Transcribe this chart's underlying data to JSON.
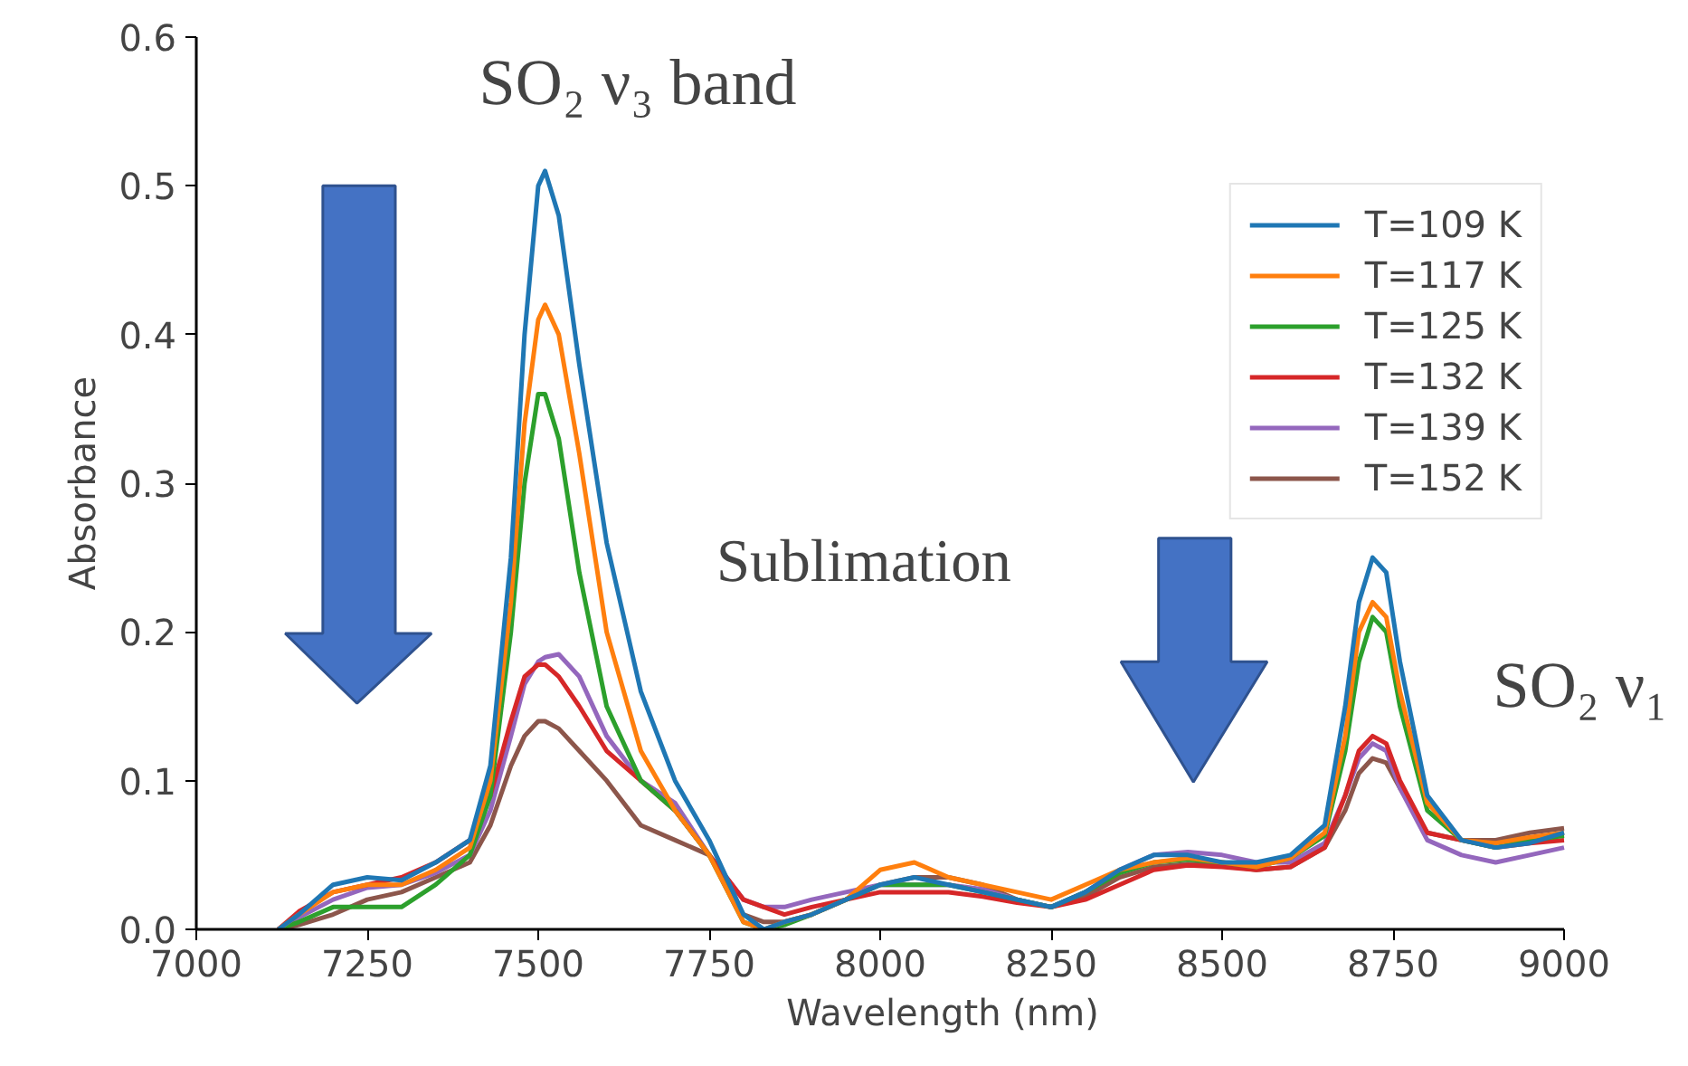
{
  "chart_data": {
    "type": "line",
    "xlabel": "Wavelength (nm)",
    "ylabel": "Absorbance",
    "x": [
      7120,
      7150,
      7200,
      7250,
      7300,
      7350,
      7400,
      7430,
      7460,
      7480,
      7500,
      7510,
      7530,
      7560,
      7600,
      7650,
      7700,
      7750,
      7800,
      7830,
      7860,
      7900,
      7950,
      8000,
      8050,
      8100,
      8150,
      8200,
      8250,
      8300,
      8350,
      8400,
      8450,
      8500,
      8550,
      8600,
      8650,
      8680,
      8700,
      8720,
      8740,
      8760,
      8800,
      8850,
      8900,
      8950,
      9000
    ],
    "series": [
      {
        "name": "T=109 K",
        "color": "#1f77b4",
        "values": [
          0,
          0.01,
          0.03,
          0.035,
          0.033,
          0.045,
          0.06,
          0.11,
          0.25,
          0.4,
          0.5,
          0.51,
          0.48,
          0.38,
          0.26,
          0.16,
          0.1,
          0.06,
          0.01,
          0,
          0.005,
          0.01,
          0.02,
          0.03,
          0.035,
          0.03,
          0.025,
          0.02,
          0.015,
          0.025,
          0.04,
          0.05,
          0.05,
          0.045,
          0.045,
          0.05,
          0.07,
          0.15,
          0.22,
          0.25,
          0.24,
          0.18,
          0.09,
          0.06,
          0.055,
          0.058,
          0.065
        ]
      },
      {
        "name": "T=117 K",
        "color": "#ff7f0e",
        "values": [
          0,
          0.01,
          0.025,
          0.03,
          0.03,
          0.04,
          0.055,
          0.1,
          0.22,
          0.34,
          0.41,
          0.42,
          0.4,
          0.32,
          0.2,
          0.12,
          0.08,
          0.05,
          0.005,
          0,
          0.005,
          0.01,
          0.02,
          0.04,
          0.045,
          0.035,
          0.03,
          0.025,
          0.02,
          0.03,
          0.04,
          0.045,
          0.048,
          0.045,
          0.042,
          0.048,
          0.065,
          0.13,
          0.2,
          0.22,
          0.21,
          0.16,
          0.085,
          0.06,
          0.058,
          0.062,
          0.065
        ]
      },
      {
        "name": "T=125 K",
        "color": "#2ca02c",
        "values": [
          0,
          0.005,
          0.015,
          0.015,
          0.015,
          0.03,
          0.05,
          0.09,
          0.2,
          0.3,
          0.36,
          0.36,
          0.33,
          0.24,
          0.15,
          0.1,
          0.08,
          0.05,
          0.005,
          0,
          0.003,
          0.01,
          0.02,
          0.03,
          0.03,
          0.03,
          0.025,
          0.02,
          0.015,
          0.025,
          0.038,
          0.045,
          0.047,
          0.045,
          0.042,
          0.048,
          0.063,
          0.12,
          0.18,
          0.21,
          0.2,
          0.15,
          0.08,
          0.06,
          0.055,
          0.06,
          0.063
        ]
      },
      {
        "name": "T=132 K",
        "color": "#d62728",
        "values": [
          0,
          0.012,
          0.025,
          0.03,
          0.035,
          0.045,
          0.06,
          0.09,
          0.14,
          0.17,
          0.178,
          0.178,
          0.17,
          0.15,
          0.12,
          0.1,
          0.08,
          0.05,
          0.02,
          0.015,
          0.01,
          0.015,
          0.02,
          0.025,
          0.025,
          0.025,
          0.022,
          0.018,
          0.015,
          0.02,
          0.03,
          0.04,
          0.043,
          0.042,
          0.04,
          0.042,
          0.055,
          0.09,
          0.12,
          0.13,
          0.125,
          0.1,
          0.065,
          0.06,
          0.055,
          0.058,
          0.06
        ]
      },
      {
        "name": "T=139 K",
        "color": "#9467bd",
        "values": [
          0,
          0.008,
          0.02,
          0.028,
          0.03,
          0.038,
          0.05,
          0.08,
          0.13,
          0.165,
          0.18,
          0.183,
          0.185,
          0.17,
          0.13,
          0.1,
          0.085,
          0.05,
          0.02,
          0.015,
          0.015,
          0.02,
          0.025,
          0.03,
          0.03,
          0.03,
          0.027,
          0.02,
          0.015,
          0.025,
          0.04,
          0.05,
          0.052,
          0.05,
          0.045,
          0.045,
          0.058,
          0.09,
          0.115,
          0.125,
          0.12,
          0.095,
          0.06,
          0.05,
          0.045,
          0.05,
          0.055
        ]
      },
      {
        "name": "T=152 K",
        "color": "#8c564b",
        "values": [
          0,
          0.003,
          0.01,
          0.02,
          0.025,
          0.035,
          0.045,
          0.07,
          0.11,
          0.13,
          0.14,
          0.14,
          0.135,
          0.12,
          0.1,
          0.07,
          0.06,
          0.05,
          0.01,
          0.005,
          0.005,
          0.01,
          0.02,
          0.03,
          0.035,
          0.035,
          0.03,
          0.02,
          0.015,
          0.022,
          0.035,
          0.042,
          0.044,
          0.043,
          0.04,
          0.042,
          0.055,
          0.08,
          0.105,
          0.115,
          0.112,
          0.095,
          0.065,
          0.06,
          0.06,
          0.065,
          0.068
        ]
      }
    ],
    "xlim": [
      7000,
      9000
    ],
    "ylim": [
      0,
      0.6
    ],
    "xticks": [
      7000,
      7250,
      7500,
      7750,
      8000,
      8250,
      8500,
      8750,
      9000
    ],
    "yticks": [
      {
        "value": 0,
        "label": "0.0"
      },
      0.1,
      0.2,
      0.3,
      0.4,
      0.5,
      0.6
    ],
    "annotations": [
      "SO₂ ν₃ band",
      "Sublimation",
      "SO₂ ν₁"
    ],
    "grid": false,
    "legend": "top right",
    "marker": "none",
    "line_style": "solid"
  }
}
